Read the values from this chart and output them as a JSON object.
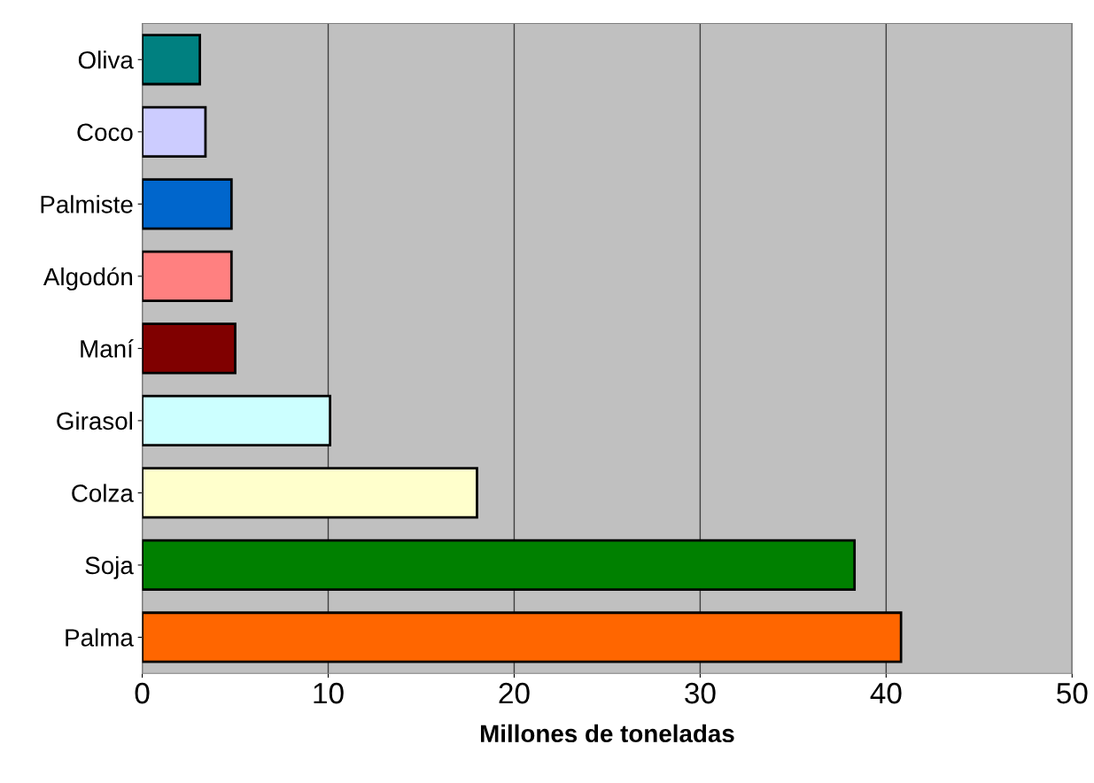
{
  "chart_data": {
    "type": "bar",
    "orientation": "horizontal",
    "xlabel": "Millones de toneladas",
    "categories": [
      "Oliva",
      "Coco",
      "Palmiste",
      "Algodón",
      "Maní",
      "Girasol",
      "Colza",
      "Soja",
      "Palma"
    ],
    "values": [
      3.1,
      3.4,
      4.8,
      4.8,
      5.0,
      10.1,
      18.0,
      38.3,
      40.8
    ],
    "colors": [
      "#008080",
      "#ccccff",
      "#0066cc",
      "#ff8080",
      "#800000",
      "#ccffff",
      "#ffffcc",
      "#008000",
      "#ff6600"
    ],
    "xlim": [
      0,
      50
    ],
    "xticks": [
      0,
      10,
      20,
      30,
      40,
      50
    ],
    "grid": "x",
    "legend": false
  }
}
